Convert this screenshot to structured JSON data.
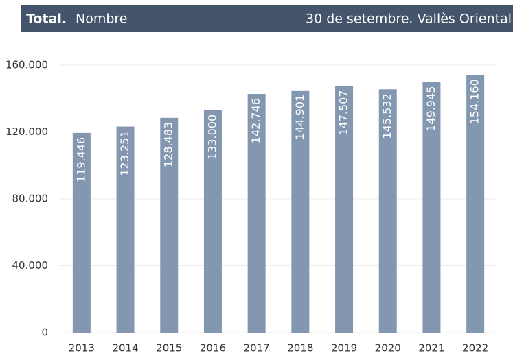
{
  "chart_data": {
    "type": "bar",
    "title_bold": "Total.",
    "title": "Nombre",
    "subtitle": "30 de setembre. Vallès Oriental",
    "categories": [
      "2013",
      "2014",
      "2015",
      "2016",
      "2017",
      "2018",
      "2019",
      "2020",
      "2021",
      "2022"
    ],
    "values": [
      119446,
      123251,
      128483,
      133000,
      142746,
      144901,
      147507,
      145532,
      149945,
      154160
    ],
    "value_labels": [
      "119.446",
      "123.251",
      "128.483",
      "133.000",
      "142.746",
      "144.901",
      "147.507",
      "145.532",
      "149.945",
      "154.160"
    ],
    "color": "#8497b0",
    "ylim": [
      0,
      160000
    ],
    "yticks": [
      0,
      {
        "value": 40000,
        "label": "40.000"
      },
      {
        "value": 80000,
        "label": "80.000"
      },
      {
        "value": 120000,
        "label": "120.000"
      },
      {
        "value": 160000,
        "label": "160.000"
      }
    ],
    "grid": true
  }
}
